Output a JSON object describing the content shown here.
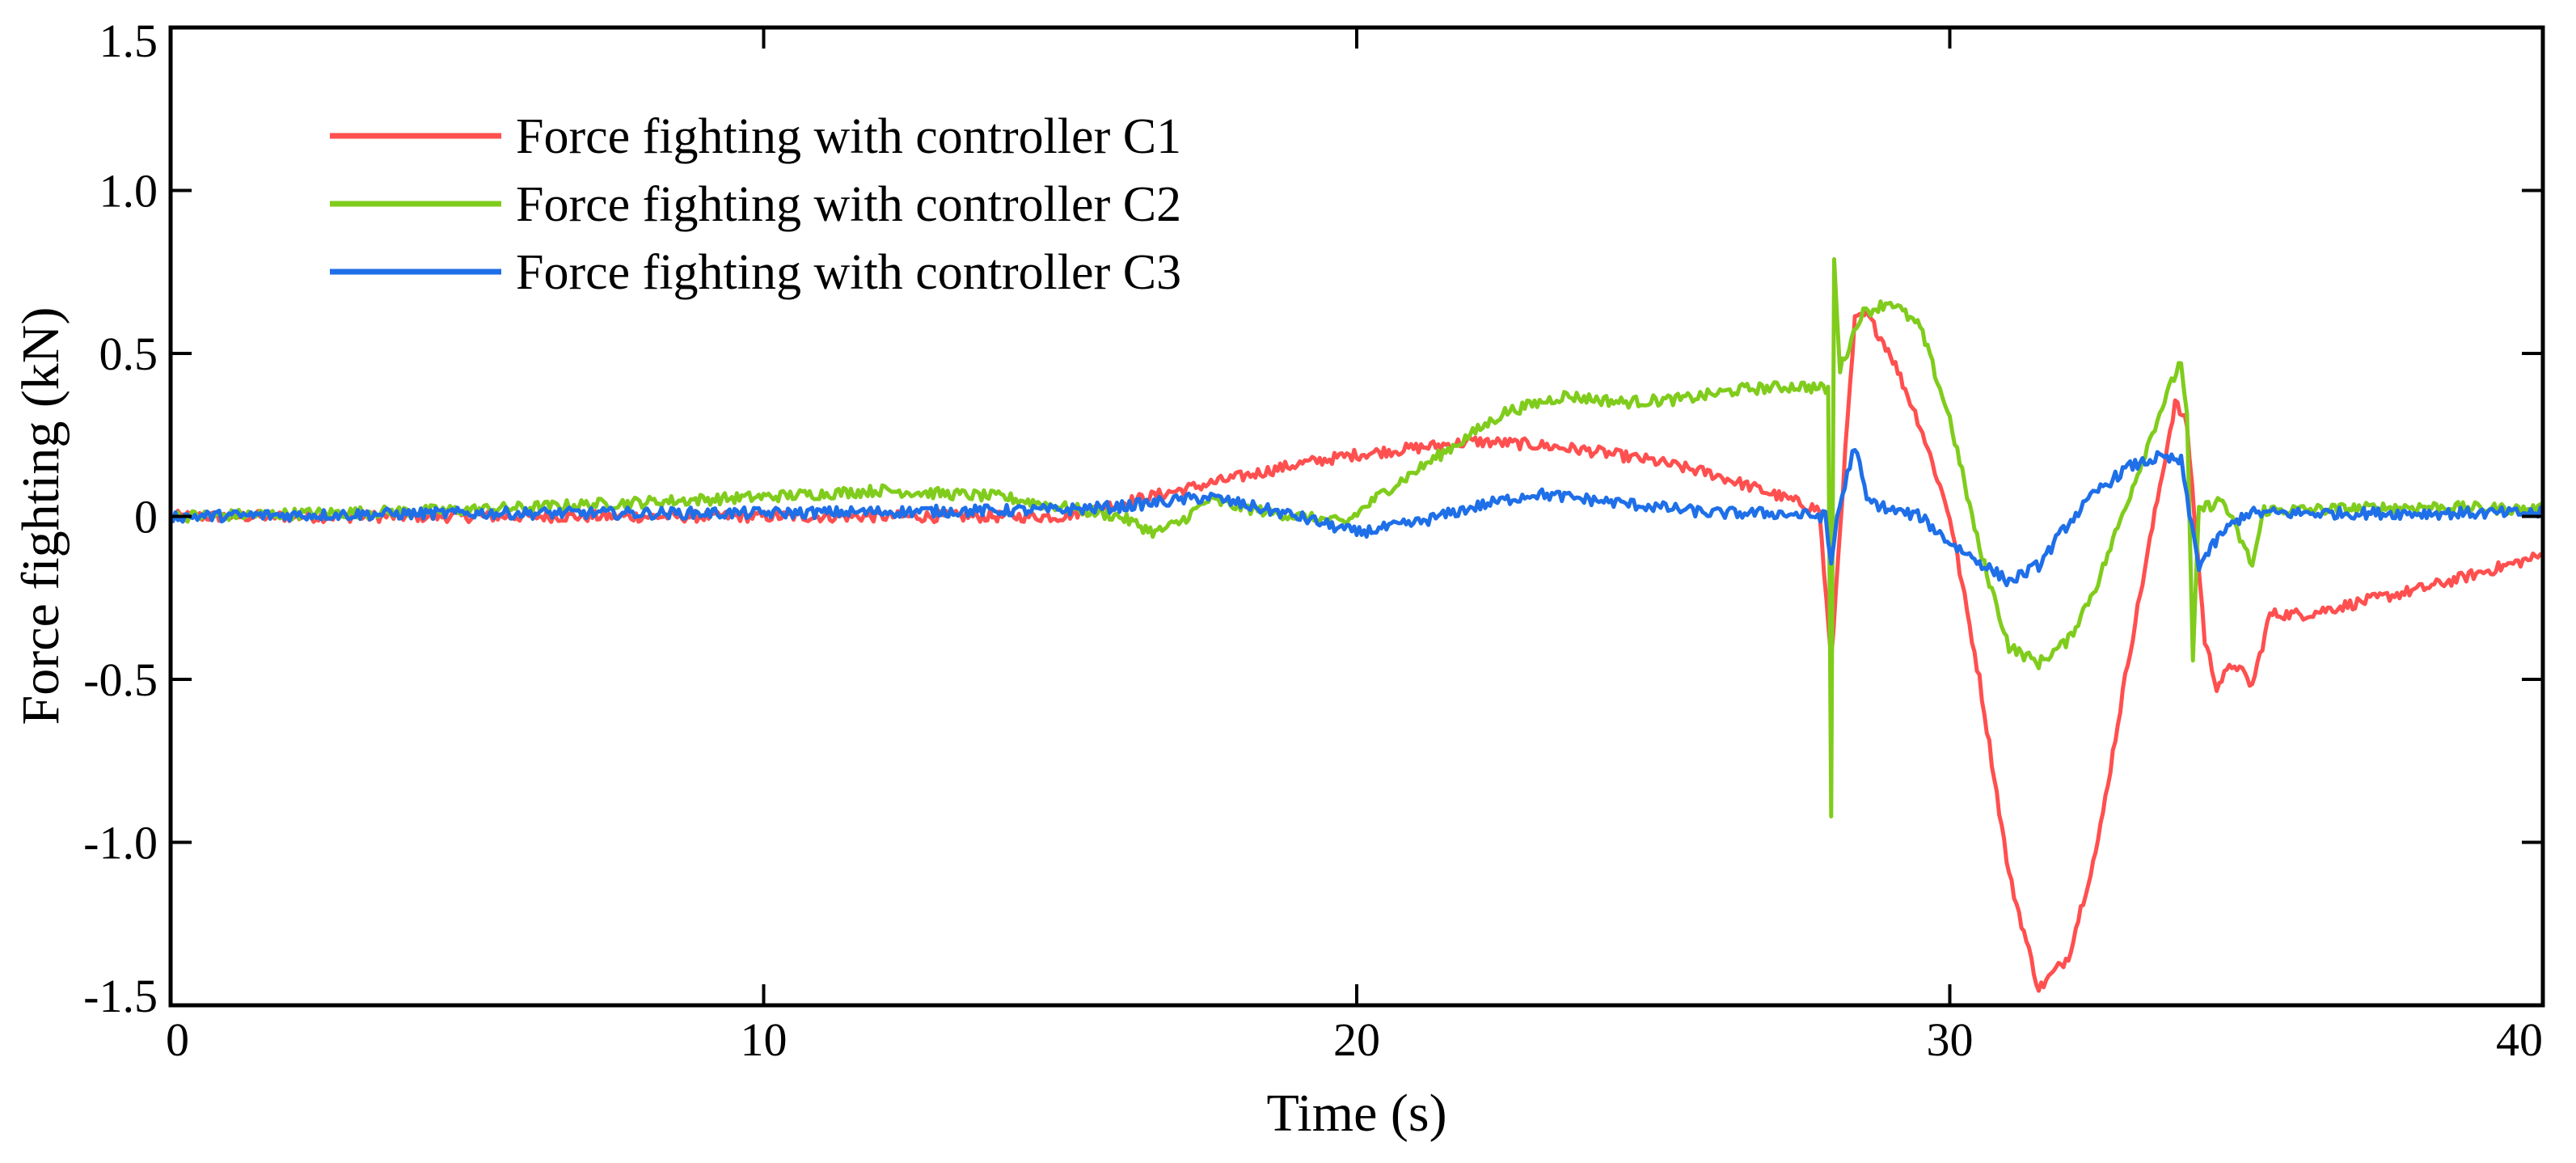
{
  "chart_data": {
    "type": "line",
    "title": "",
    "xlabel": "Time (s)",
    "ylabel": "Force fighting (kN)",
    "xlim": [
      0,
      40
    ],
    "ylim": [
      -1.5,
      1.5
    ],
    "xticks": [
      0,
      10,
      20,
      30,
      40
    ],
    "xtick_labels": [
      "0",
      "10",
      "20",
      "30",
      "40"
    ],
    "yticks": [
      1.5,
      1.0,
      0.5,
      0,
      -0.5,
      -1.0,
      -1.5
    ],
    "ytick_labels": [
      "1.5",
      "1.0",
      "0.5",
      "0",
      "-0.5",
      "-1.0",
      "-1.5"
    ],
    "grid": false,
    "legend_position": "top-left",
    "series": [
      {
        "name": "Force fighting with controller C1",
        "color": "#ff4f4f",
        "points": [
          [
            0,
            0
          ],
          [
            15,
            0
          ],
          [
            16,
            0.04
          ],
          [
            17,
            0.08
          ],
          [
            18,
            0.12
          ],
          [
            19,
            0.16
          ],
          [
            20,
            0.19
          ],
          [
            21,
            0.21
          ],
          [
            22,
            0.23
          ],
          [
            23,
            0.22
          ],
          [
            24,
            0.2
          ],
          [
            25,
            0.17
          ],
          [
            26,
            0.13
          ],
          [
            27,
            0.07
          ],
          [
            27.8,
            0.02
          ],
          [
            28,
            -0.45
          ],
          [
            28.2,
            0.1
          ],
          [
            28.4,
            0.6
          ],
          [
            28.6,
            0.62
          ],
          [
            29,
            0.5
          ],
          [
            29.5,
            0.28
          ],
          [
            30,
            0.0
          ],
          [
            30.5,
            -0.5
          ],
          [
            31,
            -1.1
          ],
          [
            31.5,
            -1.45
          ],
          [
            32,
            -1.35
          ],
          [
            32.5,
            -1.0
          ],
          [
            33,
            -0.45
          ],
          [
            33.5,
            0.05
          ],
          [
            33.8,
            0.35
          ],
          [
            34,
            0.28
          ],
          [
            34.3,
            -0.38
          ],
          [
            34.5,
            -0.52
          ],
          [
            34.8,
            -0.45
          ],
          [
            35.1,
            -0.52
          ],
          [
            35.4,
            -0.3
          ],
          [
            36,
            -0.3
          ],
          [
            37,
            -0.26
          ],
          [
            38,
            -0.22
          ],
          [
            39,
            -0.17
          ],
          [
            40,
            -0.12
          ]
        ]
      },
      {
        "name": "Force fighting with controller C2",
        "color": "#80cc1c",
        "points": [
          [
            0,
            0
          ],
          [
            5,
            0.02
          ],
          [
            10,
            0.06
          ],
          [
            12,
            0.08
          ],
          [
            14,
            0.06
          ],
          [
            15,
            0.03
          ],
          [
            16,
            0.0
          ],
          [
            16.6,
            -0.05
          ],
          [
            17,
            -0.02
          ],
          [
            17.5,
            0.05
          ],
          [
            18,
            0.03
          ],
          [
            19,
            0.0
          ],
          [
            19.8,
            -0.02
          ],
          [
            20.5,
            0.08
          ],
          [
            21.5,
            0.2
          ],
          [
            22.5,
            0.32
          ],
          [
            23.5,
            0.37
          ],
          [
            24.5,
            0.35
          ],
          [
            25.5,
            0.36
          ],
          [
            26.5,
            0.39
          ],
          [
            27.5,
            0.4
          ],
          [
            27.95,
            0.39
          ],
          [
            28.0,
            -0.92
          ],
          [
            28.05,
            0.8
          ],
          [
            28.15,
            0.45
          ],
          [
            28.5,
            0.62
          ],
          [
            29,
            0.66
          ],
          [
            29.5,
            0.58
          ],
          [
            30,
            0.3
          ],
          [
            30.5,
            -0.1
          ],
          [
            31,
            -0.4
          ],
          [
            31.5,
            -0.45
          ],
          [
            32,
            -0.38
          ],
          [
            32.5,
            -0.2
          ],
          [
            33,
            0.05
          ],
          [
            33.5,
            0.3
          ],
          [
            33.9,
            0.48
          ],
          [
            34.0,
            0.3
          ],
          [
            34.1,
            -0.45
          ],
          [
            34.2,
            0.02
          ],
          [
            34.6,
            0.05
          ],
          [
            35.1,
            -0.15
          ],
          [
            35.3,
            0.02
          ],
          [
            36,
            0.02
          ],
          [
            38,
            0.03
          ],
          [
            40,
            0.02
          ]
        ]
      },
      {
        "name": "Force fighting with controller C3",
        "color": "#1e6fe8",
        "points": [
          [
            0,
            0
          ],
          [
            5,
            0.01
          ],
          [
            10,
            0.01
          ],
          [
            15,
            0.02
          ],
          [
            16,
            0.03
          ],
          [
            17,
            0.05
          ],
          [
            17.5,
            0.06
          ],
          [
            18,
            0.04
          ],
          [
            19,
            0.0
          ],
          [
            20,
            -0.05
          ],
          [
            21,
            -0.02
          ],
          [
            22,
            0.03
          ],
          [
            23,
            0.07
          ],
          [
            24,
            0.05
          ],
          [
            25,
            0.03
          ],
          [
            26,
            0.01
          ],
          [
            27,
            0.01
          ],
          [
            27.9,
            0.0
          ],
          [
            28.0,
            -0.15
          ],
          [
            28.1,
            0.0
          ],
          [
            28.4,
            0.22
          ],
          [
            28.6,
            0.05
          ],
          [
            29,
            0.02
          ],
          [
            29.5,
            0.0
          ],
          [
            30,
            -0.08
          ],
          [
            30.5,
            -0.14
          ],
          [
            31,
            -0.2
          ],
          [
            31.5,
            -0.15
          ],
          [
            32,
            -0.02
          ],
          [
            32.5,
            0.08
          ],
          [
            33,
            0.15
          ],
          [
            33.5,
            0.18
          ],
          [
            33.9,
            0.17
          ],
          [
            34.0,
            0.05
          ],
          [
            34.2,
            -0.15
          ],
          [
            34.6,
            -0.05
          ],
          [
            35,
            0.01
          ],
          [
            36,
            0.01
          ],
          [
            38,
            0.01
          ],
          [
            40,
            0.01
          ]
        ]
      }
    ]
  }
}
